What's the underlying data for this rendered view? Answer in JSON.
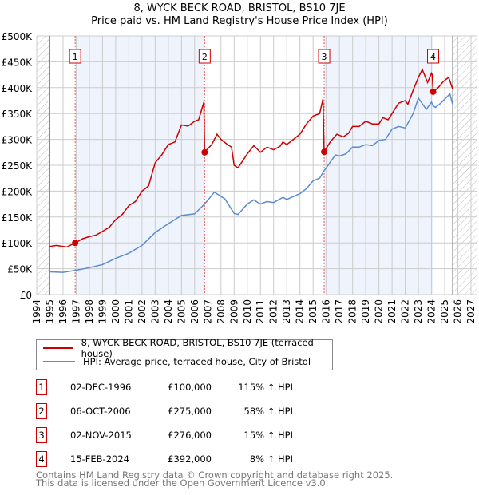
{
  "chart_data": {
    "type": "line",
    "title": "8, WYCK BECK ROAD, BRISTOL, BS10 7JE",
    "subtitle": "Price paid vs. HM Land Registry's House Price Index (HPI)",
    "xlim": [
      1994,
      2027
    ],
    "ylim": [
      0,
      500000
    ],
    "x_ticks": [
      "1994",
      "1995",
      "1996",
      "1997",
      "1998",
      "1999",
      "2000",
      "2001",
      "2002",
      "2003",
      "2004",
      "2005",
      "2006",
      "2007",
      "2008",
      "2009",
      "2010",
      "2011",
      "2012",
      "2013",
      "2014",
      "2015",
      "2016",
      "2017",
      "2018",
      "2019",
      "2020",
      "2021",
      "2022",
      "2023",
      "2024",
      "2025",
      "2026",
      "2027"
    ],
    "y_ticks": [
      {
        "v": 0,
        "label": "£0"
      },
      {
        "v": 50000,
        "label": "£50K"
      },
      {
        "v": 100000,
        "label": "£100K"
      },
      {
        "v": 150000,
        "label": "£150K"
      },
      {
        "v": 200000,
        "label": "£200K"
      },
      {
        "v": 250000,
        "label": "£250K"
      },
      {
        "v": 300000,
        "label": "£300K"
      },
      {
        "v": 350000,
        "label": "£350K"
      },
      {
        "v": 400000,
        "label": "£400K"
      },
      {
        "v": 450000,
        "label": "£450K"
      },
      {
        "v": 500000,
        "label": "£500K"
      }
    ],
    "grid": true,
    "data_range": [
      1995,
      2025.6
    ],
    "shaded_ranges": [
      [
        1996.92,
        2006.76
      ],
      [
        2015.84,
        2024.12
      ]
    ],
    "series": [
      {
        "name": "8, WYCK BECK ROAD, BRISTOL, BS10 7JE (terraced house)",
        "color": "#cc0000",
        "x": [
          1995,
          1995.5,
          1996,
          1996.3,
          1996.92,
          1997.5,
          1998,
          1998.5,
          1999,
          1999.5,
          2000,
          2000.5,
          2001,
          2001.5,
          2002,
          2002.5,
          2003,
          2003.5,
          2004,
          2004.5,
          2005,
          2005.5,
          2006,
          2006.3,
          2006.7,
          2006.76,
          2007,
          2007.3,
          2007.7,
          2008,
          2008.5,
          2008.8,
          2009,
          2009.3,
          2010,
          2010.5,
          2011,
          2011.5,
          2012,
          2012.5,
          2012.7,
          2013,
          2013.5,
          2014,
          2014.5,
          2015,
          2015.5,
          2015.75,
          2015.84,
          2016.3,
          2016.8,
          2017.3,
          2017.7,
          2018,
          2018.5,
          2019,
          2019.5,
          2020,
          2020.3,
          2020.7,
          2021,
          2021.5,
          2022,
          2022.2,
          2022.6,
          2023,
          2023.3,
          2023.7,
          2024,
          2024.05,
          2024.12,
          2024.5,
          2024.9,
          2025.3,
          2025.6
        ],
        "y": [
          93000,
          95000,
          93000,
          92000,
          100000,
          108000,
          112000,
          115000,
          122000,
          130000,
          145000,
          155000,
          172000,
          180000,
          200000,
          210000,
          255000,
          270000,
          290000,
          295000,
          328000,
          326000,
          335000,
          338000,
          372000,
          275000,
          282000,
          290000,
          310000,
          300000,
          290000,
          285000,
          250000,
          245000,
          272000,
          288000,
          275000,
          285000,
          280000,
          287000,
          295000,
          290000,
          300000,
          310000,
          330000,
          345000,
          350000,
          378000,
          276000,
          295000,
          310000,
          305000,
          312000,
          325000,
          325000,
          335000,
          330000,
          330000,
          342000,
          338000,
          350000,
          370000,
          375000,
          368000,
          395000,
          420000,
          435000,
          410000,
          428000,
          425000,
          392000,
          400000,
          412000,
          420000,
          398000
        ]
      },
      {
        "name": "HPI: Average price, terraced house, City of Bristol",
        "color": "#5b8bd0",
        "x": [
          1995,
          1996,
          1997,
          1998,
          1999,
          2000,
          2001,
          2002,
          2003,
          2004,
          2005,
          2006,
          2006.76,
          2007.5,
          2008.3,
          2009,
          2009.3,
          2010,
          2010.5,
          2011,
          2011.5,
          2012,
          2012.7,
          2013,
          2014,
          2014.5,
          2015,
          2015.5,
          2015.84,
          2016,
          2016.7,
          2017,
          2017.5,
          2018,
          2018.5,
          2019,
          2019.5,
          2020,
          2020.5,
          2021,
          2021.5,
          2022,
          2022.6,
          2023,
          2023.6,
          2024,
          2024.12,
          2024.3,
          2024.7,
          2025,
          2025.4,
          2025.6
        ],
        "y": [
          44000,
          43000,
          47000,
          52000,
          58000,
          70000,
          80000,
          95000,
          120000,
          137000,
          153000,
          156000,
          175000,
          198000,
          185000,
          157000,
          155000,
          175000,
          183000,
          175000,
          180000,
          178000,
          188000,
          184000,
          195000,
          205000,
          220000,
          225000,
          240000,
          245000,
          270000,
          268000,
          272000,
          285000,
          285000,
          290000,
          288000,
          298000,
          300000,
          320000,
          325000,
          322000,
          350000,
          380000,
          358000,
          372000,
          365000,
          362000,
          370000,
          378000,
          388000,
          368000
        ]
      }
    ],
    "sales": [
      {
        "n": "1",
        "x": 1996.92,
        "price": 100000
      },
      {
        "n": "2",
        "x": 2006.76,
        "price": 275000
      },
      {
        "n": "3",
        "x": 2015.84,
        "price": 276000
      },
      {
        "n": "4",
        "x": 2024.12,
        "price": 392000
      }
    ]
  },
  "header": {
    "title": "8, WYCK BECK ROAD, BRISTOL, BS10 7JE",
    "subtitle": "Price paid vs. HM Land Registry's House Price Index (HPI)"
  },
  "legend": {
    "property": "8, WYCK BECK ROAD, BRISTOL, BS10 7JE (terraced house)",
    "hpi": "HPI: Average price, terraced house, City of Bristol",
    "property_color": "#cc0000",
    "hpi_color": "#5b8bd0"
  },
  "transactions": [
    {
      "n": "1",
      "date": "02-DEC-1996",
      "price": "£100,000",
      "delta": "115% ↑ HPI"
    },
    {
      "n": "2",
      "date": "06-OCT-2006",
      "price": "£275,000",
      "delta": "58% ↑ HPI"
    },
    {
      "n": "3",
      "date": "02-NOV-2015",
      "price": "£276,000",
      "delta": "15% ↑ HPI"
    },
    {
      "n": "4",
      "date": "15-FEB-2024",
      "price": "£392,000",
      "delta": "8% ↑ HPI"
    }
  ],
  "footer": {
    "line1": "Contains HM Land Registry data © Crown copyright and database right 2025.",
    "line2": "This data is licensed under the Open Government Licence v3.0."
  }
}
